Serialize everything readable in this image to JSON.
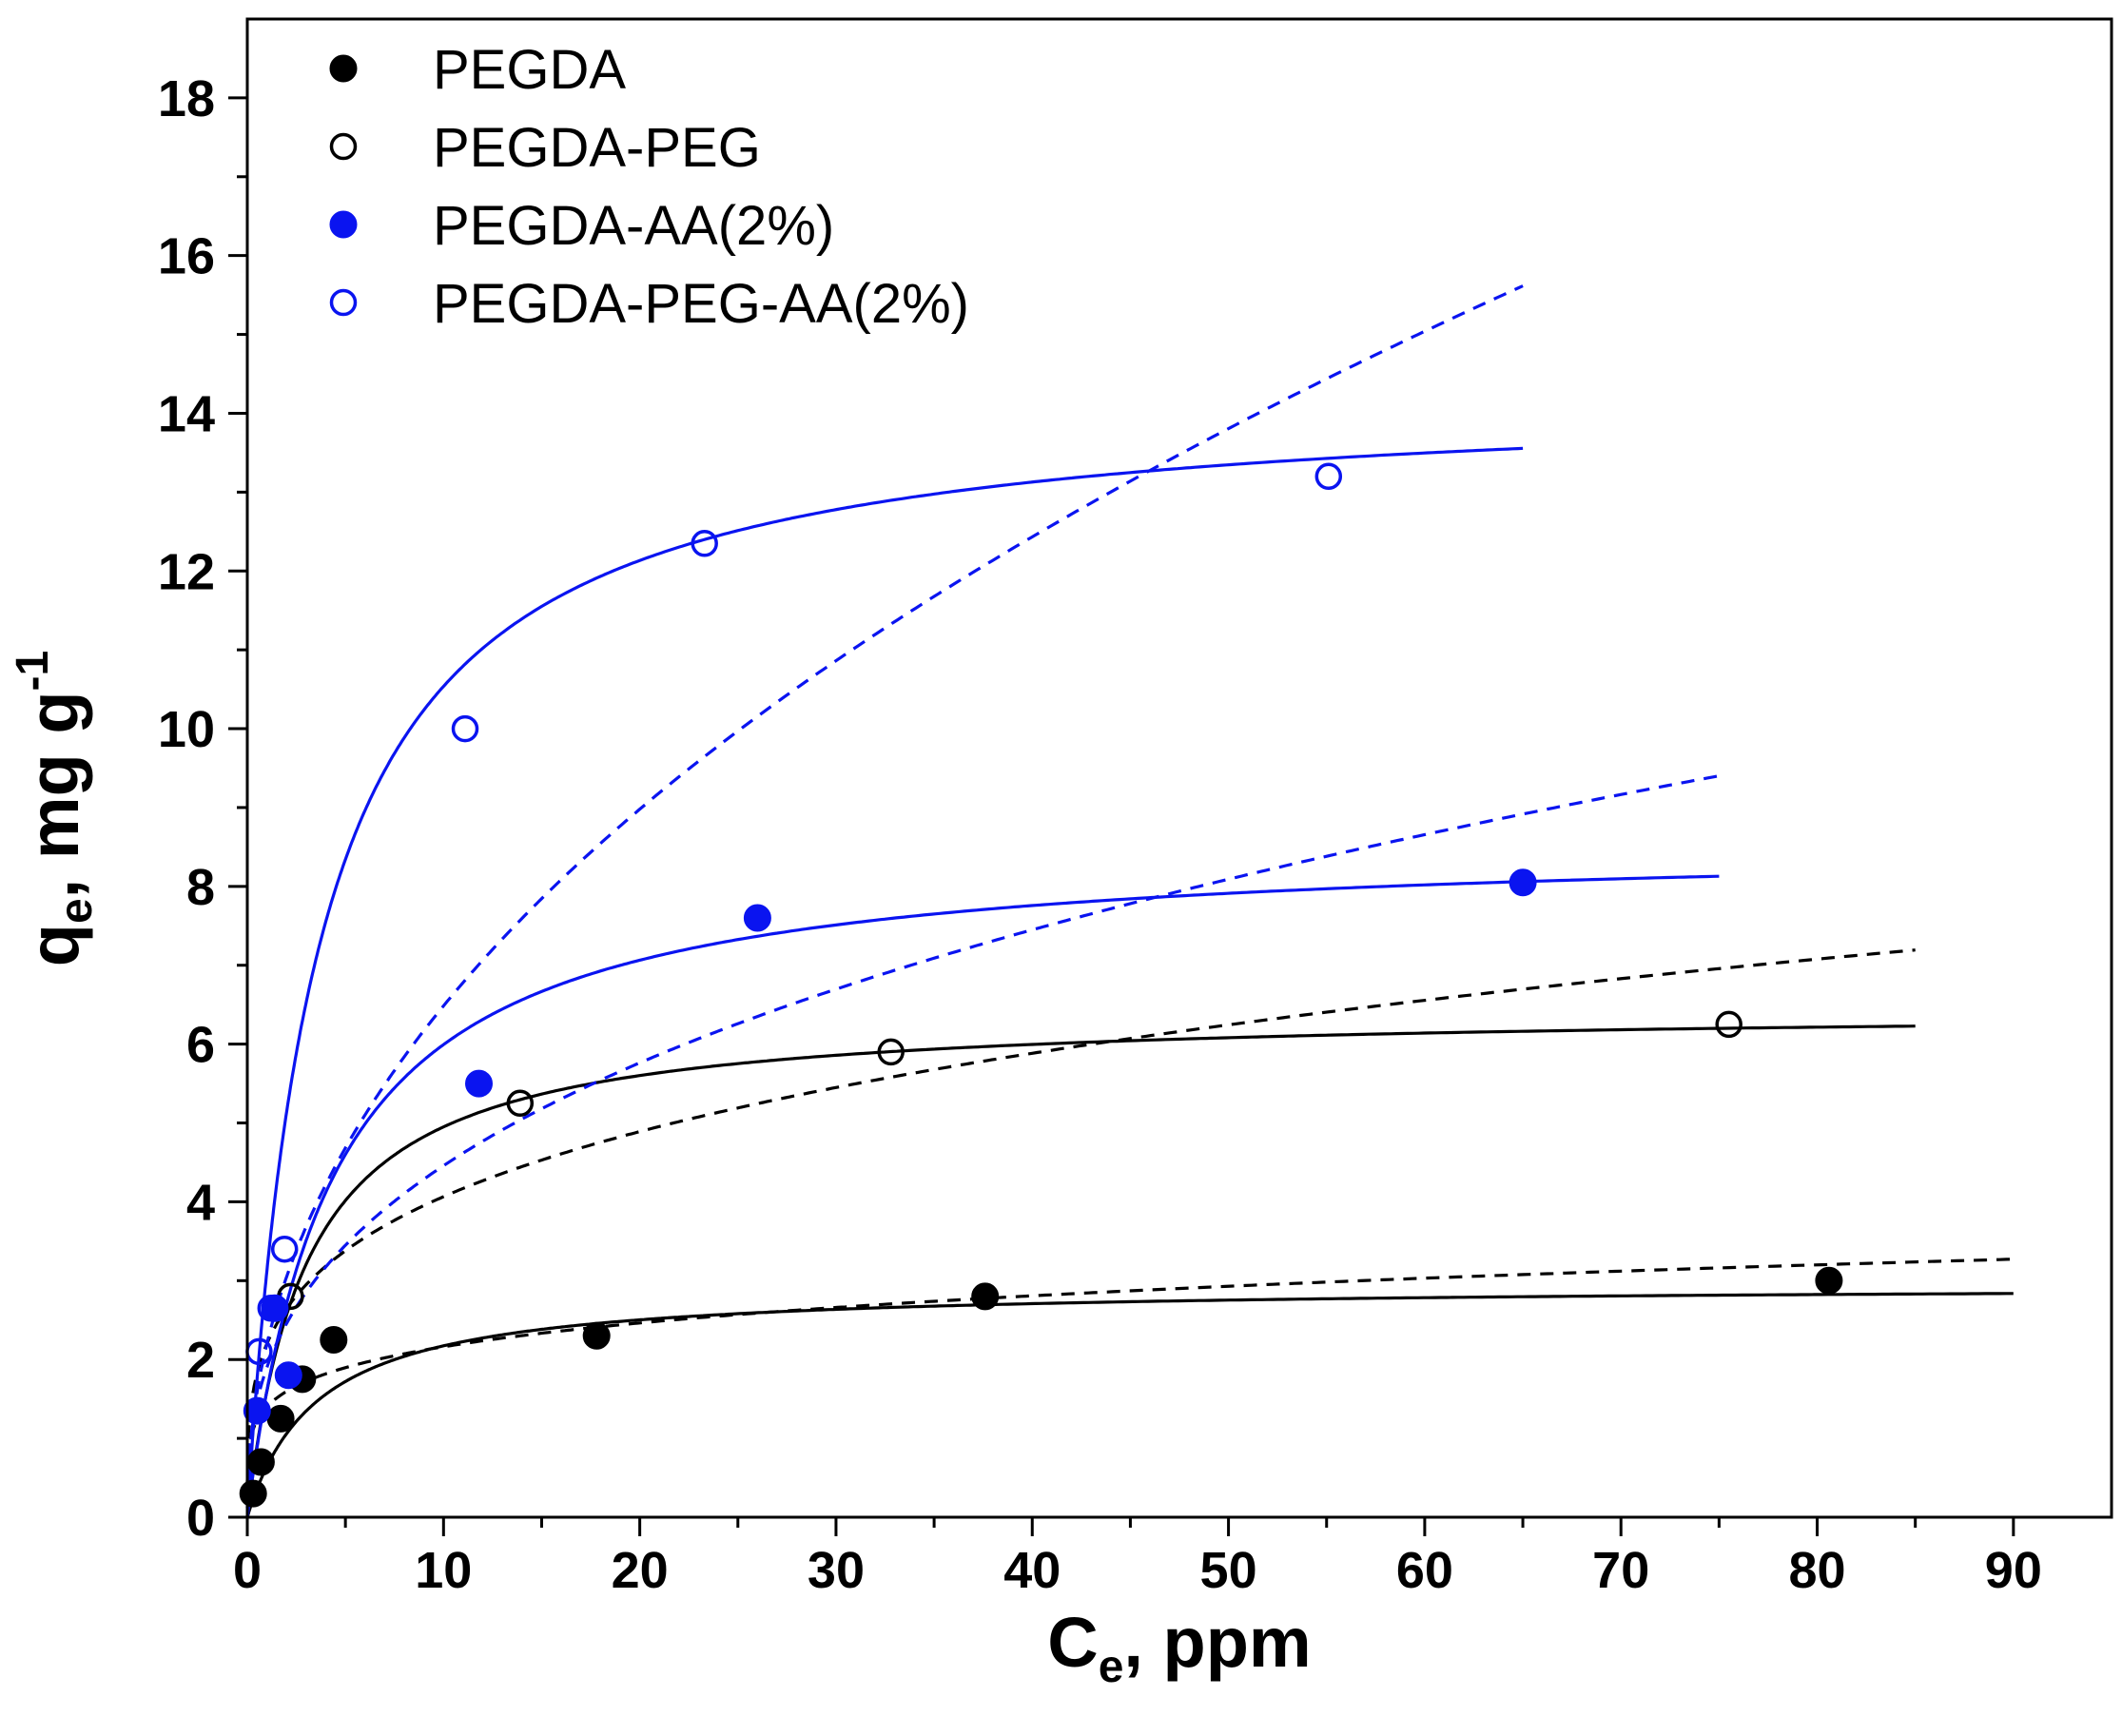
{
  "chart_data": {
    "type": "scatter",
    "title": "",
    "xlabel": {
      "main": "C",
      "sub": "e",
      "rest": ", ppm"
    },
    "ylabel": {
      "main": "q",
      "sub": "e",
      "rest": ", mg g",
      "sup": "-1"
    },
    "xlim": [
      0,
      95
    ],
    "ylim": [
      0,
      19
    ],
    "x_ticks": [
      0,
      10,
      20,
      30,
      40,
      50,
      60,
      70,
      80,
      90
    ],
    "y_ticks": [
      0,
      2,
      4,
      6,
      8,
      10,
      12,
      14,
      16,
      18
    ],
    "x_tick_labels": [
      "0",
      "10",
      "20",
      "30",
      "40",
      "50",
      "60",
      "70",
      "80",
      "90"
    ],
    "y_tick_labels": [
      "0",
      "2",
      "4",
      "6",
      "8",
      "10",
      "12",
      "14",
      "16",
      "18"
    ],
    "grid": false,
    "legend_position": "top-left",
    "series": [
      {
        "name": "PEGDA",
        "color": "#000000",
        "marker": "filled-circle",
        "points": [
          [
            0.3,
            0.3
          ],
          [
            0.7,
            0.7
          ],
          [
            1.7,
            1.25
          ],
          [
            2.8,
            1.75
          ],
          [
            4.4,
            2.25
          ],
          [
            17.8,
            2.3
          ],
          [
            37.6,
            2.8
          ],
          [
            80.6,
            3.0
          ]
        ],
        "fit_solid": {
          "model": "langmuir",
          "qmax": 2.95,
          "K": 0.28,
          "x_max": 90
        },
        "fit_dashed": {
          "model": "freundlich",
          "Kf": 1.4,
          "n": 5.3,
          "x_max": 90
        }
      },
      {
        "name": "PEGDA-PEG",
        "color": "#000000",
        "marker": "open-circle",
        "points": [
          [
            2.2,
            2.8
          ],
          [
            13.9,
            5.25
          ],
          [
            32.8,
            5.9
          ],
          [
            75.5,
            6.25
          ]
        ],
        "fit_solid": {
          "model": "langmuir",
          "qmax": 6.45,
          "K": 0.33,
          "x_max": 85
        },
        "fit_dashed": {
          "model": "freundlich",
          "Kf": 2.2,
          "n": 3.75,
          "x_max": 85
        }
      },
      {
        "name": "PEGDA-AA(2%)",
        "color": "#0a14f0",
        "marker": "filled-circle",
        "points": [
          [
            0.5,
            1.35
          ],
          [
            2.1,
            1.8
          ],
          [
            1.4,
            2.65
          ],
          [
            11.8,
            5.5
          ],
          [
            26.0,
            7.6
          ],
          [
            65.0,
            8.05
          ]
        ],
        "fit_solid": {
          "model": "langmuir",
          "qmax": 8.6,
          "K": 0.23,
          "x_max": 75
        },
        "fit_dashed": {
          "model": "freundlich",
          "Kf": 1.9,
          "n": 2.7,
          "x_max": 75
        }
      },
      {
        "name": "PEGDA-PEG-AA(2%)",
        "color": "#0a14f0",
        "marker": "open-circle",
        "points": [
          [
            0.6,
            2.1
          ],
          [
            1.2,
            2.65
          ],
          [
            1.9,
            3.4
          ],
          [
            11.1,
            10.0
          ],
          [
            23.3,
            12.35
          ],
          [
            55.1,
            13.2
          ]
        ],
        "fit_solid": {
          "model": "langmuir",
          "qmax": 14.3,
          "K": 0.28,
          "x_max": 65
        },
        "fit_dashed": {
          "model": "freundlich",
          "Kf": 2.2,
          "n": 2.13,
          "x_max": 65
        }
      }
    ]
  }
}
